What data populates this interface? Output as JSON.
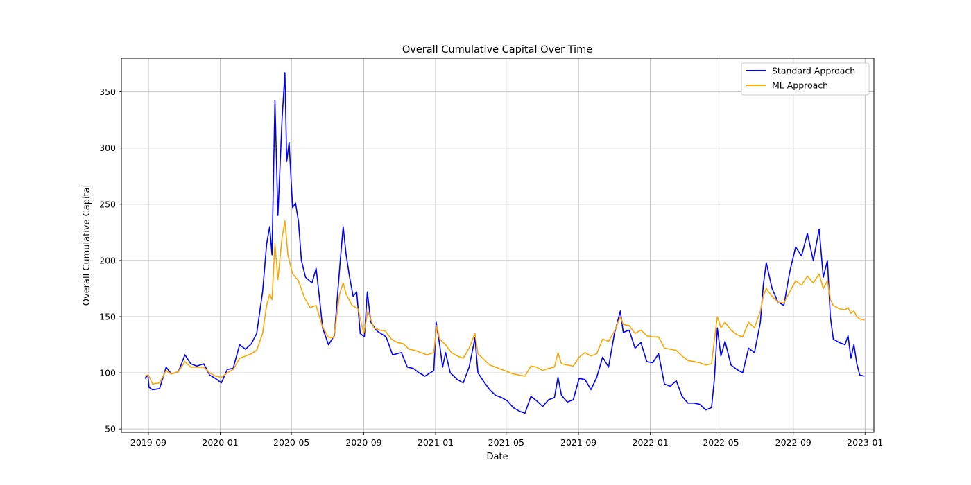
{
  "chart_data": {
    "type": "line",
    "title": "Overall Cumulative Capital Over Time",
    "xlabel": "Date",
    "ylabel": "Overall Cumulative Capital",
    "xlim": [
      "2019-07-17",
      "2023-01-16"
    ],
    "ylim": [
      47,
      380
    ],
    "x_ticks": [
      "2019-09",
      "2020-01",
      "2020-05",
      "2020-09",
      "2021-01",
      "2021-05",
      "2021-09",
      "2022-01",
      "2022-05",
      "2022-09",
      "2023-01"
    ],
    "y_ticks": [
      50,
      100,
      150,
      200,
      250,
      300,
      350
    ],
    "grid": true,
    "legend_position": "top-right",
    "series": [
      {
        "name": "Standard Approach",
        "color": "#0000ff",
        "points": [
          [
            "2019-08-26",
            95
          ],
          [
            "2019-08-31",
            98
          ],
          [
            "2019-09-02",
            87
          ],
          [
            "2019-09-08",
            85
          ],
          [
            "2019-09-20",
            86
          ],
          [
            "2019-10-01",
            105
          ],
          [
            "2019-10-10",
            99
          ],
          [
            "2019-10-22",
            101
          ],
          [
            "2019-11-02",
            116
          ],
          [
            "2019-11-12",
            108
          ],
          [
            "2019-11-22",
            106
          ],
          [
            "2019-12-04",
            108
          ],
          [
            "2019-12-14",
            98
          ],
          [
            "2019-12-24",
            95
          ],
          [
            "2020-01-03",
            91
          ],
          [
            "2020-01-13",
            103
          ],
          [
            "2020-01-23",
            104
          ],
          [
            "2020-02-03",
            125
          ],
          [
            "2020-02-13",
            121
          ],
          [
            "2020-02-23",
            126
          ],
          [
            "2020-03-03",
            135
          ],
          [
            "2020-03-13",
            172
          ],
          [
            "2020-03-20",
            215
          ],
          [
            "2020-03-25",
            230
          ],
          [
            "2020-03-29",
            205
          ],
          [
            "2020-04-03",
            342
          ],
          [
            "2020-04-08",
            240
          ],
          [
            "2020-04-15",
            325
          ],
          [
            "2020-04-20",
            367
          ],
          [
            "2020-04-23",
            288
          ],
          [
            "2020-04-27",
            305
          ],
          [
            "2020-05-03",
            247
          ],
          [
            "2020-05-08",
            251
          ],
          [
            "2020-05-13",
            235
          ],
          [
            "2020-05-18",
            200
          ],
          [
            "2020-05-25",
            185
          ],
          [
            "2020-06-05",
            180
          ],
          [
            "2020-06-12",
            193
          ],
          [
            "2020-06-18",
            165
          ],
          [
            "2020-06-23",
            140
          ],
          [
            "2020-07-03",
            125
          ],
          [
            "2020-07-13",
            133
          ],
          [
            "2020-07-23",
            200
          ],
          [
            "2020-07-28",
            230
          ],
          [
            "2020-08-02",
            205
          ],
          [
            "2020-08-08",
            185
          ],
          [
            "2020-08-14",
            168
          ],
          [
            "2020-08-20",
            172
          ],
          [
            "2020-08-26",
            135
          ],
          [
            "2020-09-02",
            132
          ],
          [
            "2020-09-07",
            172
          ],
          [
            "2020-09-13",
            145
          ],
          [
            "2020-09-24",
            137
          ],
          [
            "2020-10-09",
            132
          ],
          [
            "2020-10-20",
            116
          ],
          [
            "2020-11-04",
            118
          ],
          [
            "2020-11-14",
            105
          ],
          [
            "2020-11-24",
            104
          ],
          [
            "2020-12-04",
            100
          ],
          [
            "2020-12-14",
            97
          ],
          [
            "2020-12-29",
            102
          ],
          [
            "2021-01-02",
            145
          ],
          [
            "2021-01-08",
            125
          ],
          [
            "2021-01-13",
            105
          ],
          [
            "2021-01-18",
            118
          ],
          [
            "2021-01-26",
            100
          ],
          [
            "2021-02-07",
            94
          ],
          [
            "2021-02-17",
            91
          ],
          [
            "2021-02-27",
            105
          ],
          [
            "2021-03-09",
            131
          ],
          [
            "2021-03-14",
            100
          ],
          [
            "2021-03-24",
            92
          ],
          [
            "2021-04-03",
            85
          ],
          [
            "2021-04-13",
            80
          ],
          [
            "2021-04-23",
            78
          ],
          [
            "2021-05-03",
            75
          ],
          [
            "2021-05-13",
            69
          ],
          [
            "2021-05-23",
            66
          ],
          [
            "2021-06-02",
            64
          ],
          [
            "2021-06-12",
            79
          ],
          [
            "2021-06-22",
            75
          ],
          [
            "2021-07-02",
            70
          ],
          [
            "2021-07-12",
            76
          ],
          [
            "2021-07-22",
            78
          ],
          [
            "2021-07-28",
            96
          ],
          [
            "2021-08-03",
            80
          ],
          [
            "2021-08-13",
            74
          ],
          [
            "2021-08-23",
            76
          ],
          [
            "2021-09-02",
            95
          ],
          [
            "2021-09-12",
            94
          ],
          [
            "2021-09-22",
            85
          ],
          [
            "2021-10-02",
            96
          ],
          [
            "2021-10-12",
            114
          ],
          [
            "2021-10-22",
            105
          ],
          [
            "2021-11-01",
            135
          ],
          [
            "2021-11-11",
            155
          ],
          [
            "2021-11-16",
            136
          ],
          [
            "2021-11-26",
            138
          ],
          [
            "2021-12-06",
            122
          ],
          [
            "2021-12-16",
            127
          ],
          [
            "2021-12-26",
            110
          ],
          [
            "2022-01-05",
            109
          ],
          [
            "2022-01-15",
            117
          ],
          [
            "2022-01-25",
            90
          ],
          [
            "2022-02-04",
            88
          ],
          [
            "2022-02-14",
            93
          ],
          [
            "2022-02-24",
            79
          ],
          [
            "2022-03-06",
            73
          ],
          [
            "2022-03-16",
            73
          ],
          [
            "2022-03-26",
            72
          ],
          [
            "2022-04-05",
            67
          ],
          [
            "2022-04-15",
            69
          ],
          [
            "2022-04-20",
            95
          ],
          [
            "2022-04-25",
            140
          ],
          [
            "2022-05-01",
            115
          ],
          [
            "2022-05-08",
            128
          ],
          [
            "2022-05-18",
            107
          ],
          [
            "2022-05-28",
            103
          ],
          [
            "2022-06-07",
            100
          ],
          [
            "2022-06-17",
            122
          ],
          [
            "2022-06-27",
            118
          ],
          [
            "2022-07-07",
            145
          ],
          [
            "2022-07-12",
            178
          ],
          [
            "2022-07-17",
            198
          ],
          [
            "2022-07-27",
            175
          ],
          [
            "2022-08-06",
            163
          ],
          [
            "2022-08-16",
            160
          ],
          [
            "2022-08-26",
            190
          ],
          [
            "2022-09-05",
            212
          ],
          [
            "2022-09-15",
            204
          ],
          [
            "2022-09-25",
            224
          ],
          [
            "2022-10-05",
            200
          ],
          [
            "2022-10-15",
            228
          ],
          [
            "2022-10-22",
            185
          ],
          [
            "2022-10-29",
            200
          ],
          [
            "2022-11-03",
            150
          ],
          [
            "2022-11-08",
            130
          ],
          [
            "2022-11-18",
            127
          ],
          [
            "2022-11-28",
            125
          ],
          [
            "2022-12-03",
            133
          ],
          [
            "2022-12-08",
            113
          ],
          [
            "2022-12-13",
            125
          ],
          [
            "2022-12-18",
            108
          ],
          [
            "2022-12-23",
            98
          ],
          [
            "2022-12-31",
            97
          ]
        ]
      },
      {
        "name": "ML Approach",
        "color": "#ffa500",
        "points": [
          [
            "2019-08-26",
            97
          ],
          [
            "2019-09-01",
            98
          ],
          [
            "2019-09-08",
            90
          ],
          [
            "2019-09-20",
            91
          ],
          [
            "2019-10-01",
            102
          ],
          [
            "2019-10-10",
            99
          ],
          [
            "2019-10-22",
            101
          ],
          [
            "2019-11-02",
            110
          ],
          [
            "2019-11-12",
            105
          ],
          [
            "2019-11-22",
            105
          ],
          [
            "2019-12-04",
            105
          ],
          [
            "2019-12-14",
            100
          ],
          [
            "2019-12-24",
            97
          ],
          [
            "2020-01-03",
            96
          ],
          [
            "2020-01-13",
            100
          ],
          [
            "2020-01-23",
            103
          ],
          [
            "2020-02-03",
            113
          ],
          [
            "2020-02-13",
            115
          ],
          [
            "2020-02-23",
            117
          ],
          [
            "2020-03-03",
            120
          ],
          [
            "2020-03-13",
            135
          ],
          [
            "2020-03-20",
            160
          ],
          [
            "2020-03-25",
            170
          ],
          [
            "2020-03-29",
            165
          ],
          [
            "2020-04-03",
            215
          ],
          [
            "2020-04-08",
            183
          ],
          [
            "2020-04-15",
            220
          ],
          [
            "2020-04-20",
            235
          ],
          [
            "2020-04-25",
            205
          ],
          [
            "2020-05-03",
            188
          ],
          [
            "2020-05-13",
            182
          ],
          [
            "2020-05-23",
            167
          ],
          [
            "2020-06-02",
            158
          ],
          [
            "2020-06-12",
            160
          ],
          [
            "2020-06-22",
            142
          ],
          [
            "2020-07-02",
            132
          ],
          [
            "2020-07-12",
            131
          ],
          [
            "2020-07-22",
            170
          ],
          [
            "2020-07-28",
            180
          ],
          [
            "2020-08-02",
            170
          ],
          [
            "2020-08-12",
            160
          ],
          [
            "2020-08-22",
            157
          ],
          [
            "2020-09-01",
            135
          ],
          [
            "2020-09-08",
            155
          ],
          [
            "2020-09-18",
            140
          ],
          [
            "2020-09-28",
            138
          ],
          [
            "2020-10-08",
            137
          ],
          [
            "2020-10-18",
            130
          ],
          [
            "2020-10-28",
            127
          ],
          [
            "2020-11-07",
            126
          ],
          [
            "2020-11-17",
            121
          ],
          [
            "2020-11-27",
            120
          ],
          [
            "2020-12-07",
            118
          ],
          [
            "2020-12-17",
            116
          ],
          [
            "2020-12-29",
            118
          ],
          [
            "2021-01-03",
            142
          ],
          [
            "2021-01-08",
            130
          ],
          [
            "2021-01-18",
            125
          ],
          [
            "2021-01-28",
            118
          ],
          [
            "2021-02-07",
            115
          ],
          [
            "2021-02-17",
            113
          ],
          [
            "2021-02-27",
            122
          ],
          [
            "2021-03-09",
            135
          ],
          [
            "2021-03-14",
            117
          ],
          [
            "2021-03-24",
            112
          ],
          [
            "2021-04-03",
            107
          ],
          [
            "2021-04-13",
            105
          ],
          [
            "2021-04-23",
            103
          ],
          [
            "2021-05-03",
            101
          ],
          [
            "2021-05-13",
            99
          ],
          [
            "2021-05-23",
            98
          ],
          [
            "2021-06-02",
            97
          ],
          [
            "2021-06-12",
            106
          ],
          [
            "2021-06-22",
            105
          ],
          [
            "2021-07-02",
            102
          ],
          [
            "2021-07-12",
            104
          ],
          [
            "2021-07-22",
            105
          ],
          [
            "2021-07-28",
            118
          ],
          [
            "2021-08-03",
            108
          ],
          [
            "2021-08-13",
            107
          ],
          [
            "2021-08-23",
            106
          ],
          [
            "2021-09-02",
            114
          ],
          [
            "2021-09-12",
            118
          ],
          [
            "2021-09-22",
            115
          ],
          [
            "2021-10-02",
            117
          ],
          [
            "2021-10-12",
            130
          ],
          [
            "2021-10-22",
            128
          ],
          [
            "2021-11-01",
            137
          ],
          [
            "2021-11-11",
            150
          ],
          [
            "2021-11-16",
            143
          ],
          [
            "2021-11-26",
            142
          ],
          [
            "2021-12-06",
            135
          ],
          [
            "2021-12-16",
            138
          ],
          [
            "2021-12-26",
            133
          ],
          [
            "2022-01-05",
            132
          ],
          [
            "2022-01-15",
            132
          ],
          [
            "2022-01-25",
            122
          ],
          [
            "2022-02-04",
            121
          ],
          [
            "2022-02-14",
            120
          ],
          [
            "2022-02-24",
            115
          ],
          [
            "2022-03-06",
            111
          ],
          [
            "2022-03-16",
            110
          ],
          [
            "2022-03-26",
            109
          ],
          [
            "2022-04-05",
            107
          ],
          [
            "2022-04-15",
            108
          ],
          [
            "2022-04-20",
            130
          ],
          [
            "2022-04-25",
            150
          ],
          [
            "2022-05-01",
            140
          ],
          [
            "2022-05-08",
            145
          ],
          [
            "2022-05-18",
            138
          ],
          [
            "2022-05-28",
            134
          ],
          [
            "2022-06-07",
            132
          ],
          [
            "2022-06-17",
            145
          ],
          [
            "2022-06-27",
            140
          ],
          [
            "2022-07-07",
            155
          ],
          [
            "2022-07-12",
            168
          ],
          [
            "2022-07-17",
            175
          ],
          [
            "2022-07-27",
            168
          ],
          [
            "2022-08-06",
            163
          ],
          [
            "2022-08-16",
            162
          ],
          [
            "2022-08-26",
            172
          ],
          [
            "2022-09-05",
            182
          ],
          [
            "2022-09-15",
            178
          ],
          [
            "2022-09-25",
            186
          ],
          [
            "2022-10-05",
            180
          ],
          [
            "2022-10-15",
            188
          ],
          [
            "2022-10-22",
            175
          ],
          [
            "2022-10-29",
            182
          ],
          [
            "2022-11-03",
            165
          ],
          [
            "2022-11-08",
            160
          ],
          [
            "2022-11-18",
            157
          ],
          [
            "2022-11-28",
            156
          ],
          [
            "2022-12-03",
            158
          ],
          [
            "2022-12-08",
            153
          ],
          [
            "2022-12-13",
            155
          ],
          [
            "2022-12-18",
            150
          ],
          [
            "2022-12-23",
            148
          ],
          [
            "2022-12-31",
            147
          ]
        ]
      }
    ]
  }
}
